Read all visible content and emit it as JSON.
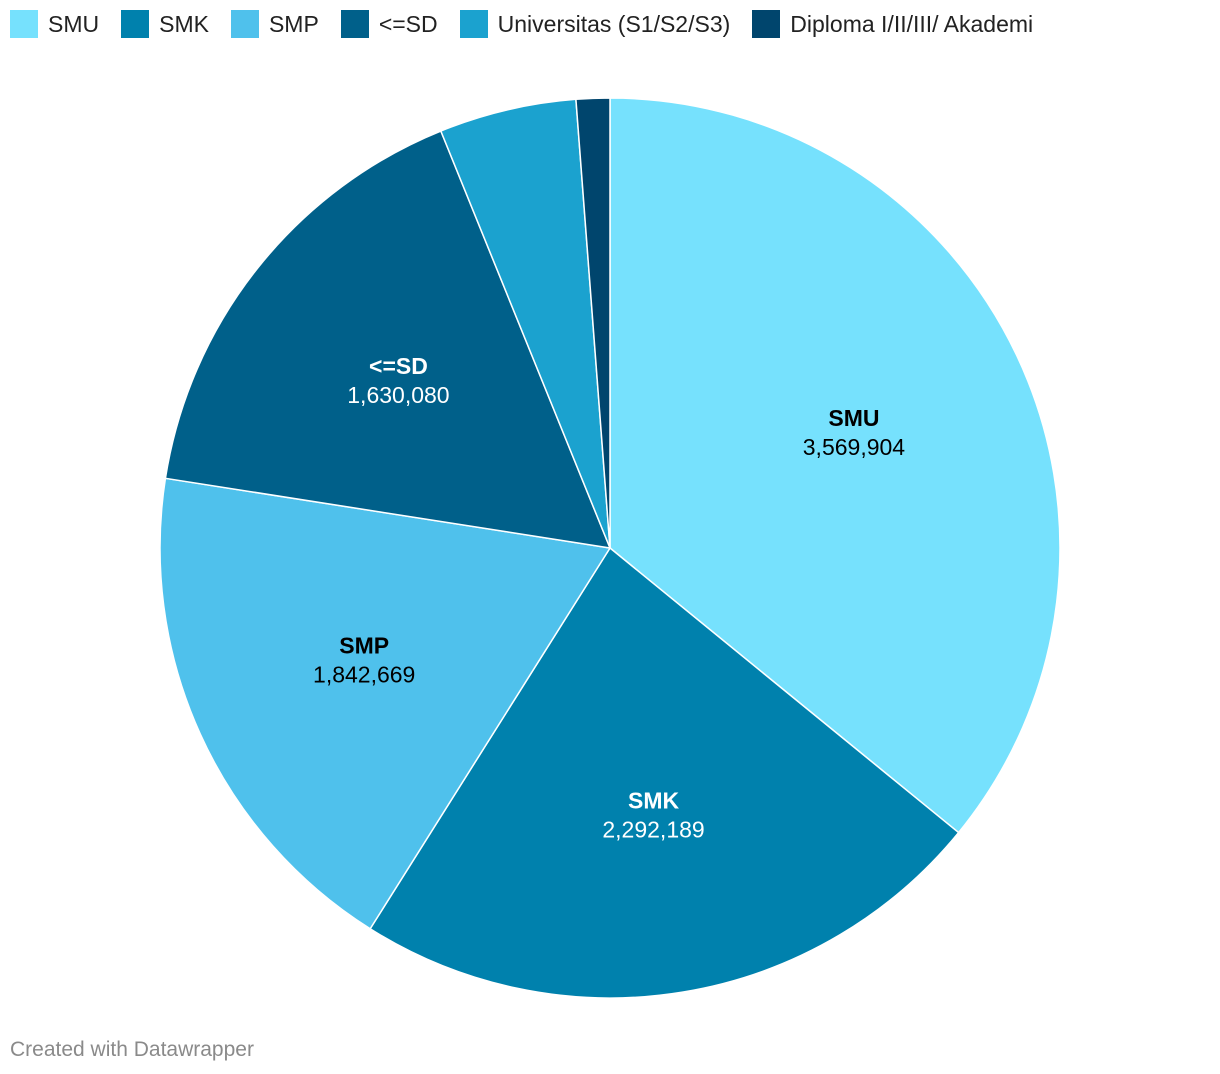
{
  "chart_data": {
    "type": "pie",
    "legend_position": "top-left",
    "slices": [
      {
        "label": "SMU",
        "value": 3569904,
        "value_label": "3,569,904",
        "color": "#76e1fd",
        "text_color": "#000000"
      },
      {
        "label": "SMK",
        "value": 2292189,
        "value_label": "2,292,189",
        "color": "#0081ad",
        "text_color": "#ffffff"
      },
      {
        "label": "SMP",
        "value": 1842669,
        "value_label": "1,842,669",
        "color": "#4fc1ec",
        "text_color": "#000000"
      },
      {
        "label": "<=SD",
        "value": 1630080,
        "value_label": "1,630,080",
        "color": "#00608a",
        "text_color": "#ffffff"
      },
      {
        "label": "Universitas (S1/S2/S3)",
        "value": 490000,
        "value_label": "",
        "color": "#1ba2cf",
        "text_color": "#ffffff"
      },
      {
        "label": "Diploma I/II/III/ Akademi",
        "value": 120000,
        "value_label": "",
        "color": "#00456d",
        "text_color": "#ffffff"
      }
    ]
  },
  "footer": {
    "credit": "Created with Datawrapper"
  }
}
